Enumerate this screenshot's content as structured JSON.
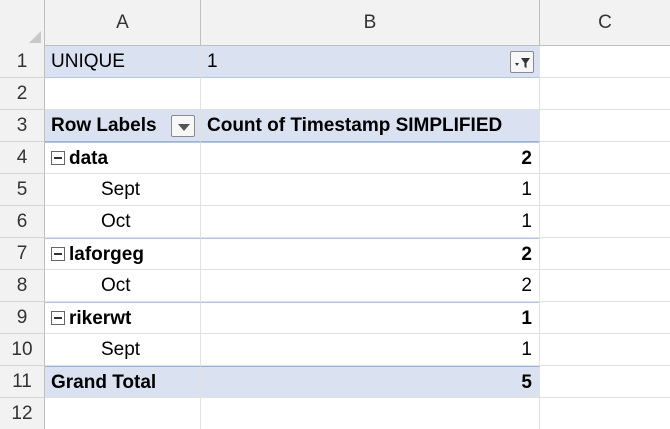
{
  "columns": [
    "A",
    "B",
    "C"
  ],
  "rows": [
    "1",
    "2",
    "3",
    "4",
    "5",
    "6",
    "7",
    "8",
    "9",
    "10",
    "11",
    "12"
  ],
  "filter": {
    "label": "UNIQUE",
    "value": "1"
  },
  "pivot": {
    "row_labels_header": "Row Labels",
    "value_header": "Count of Timestamp SIMPLIFIED",
    "groups": [
      {
        "name": "data",
        "total": "2",
        "items": [
          {
            "label": "Sept",
            "value": "1"
          },
          {
            "label": "Oct",
            "value": "1"
          }
        ]
      },
      {
        "name": "laforgeg",
        "total": "2",
        "items": [
          {
            "label": "Oct",
            "value": "2"
          }
        ]
      },
      {
        "name": "rikerwt",
        "total": "1",
        "items": [
          {
            "label": "Sept",
            "value": "1"
          }
        ]
      }
    ],
    "grand_total_label": "Grand Total",
    "grand_total_value": "5"
  },
  "icons": {
    "filter": "filter-dropdown-icon",
    "dropdown": "chevron-down-icon",
    "collapse": "collapse-minus-icon"
  }
}
